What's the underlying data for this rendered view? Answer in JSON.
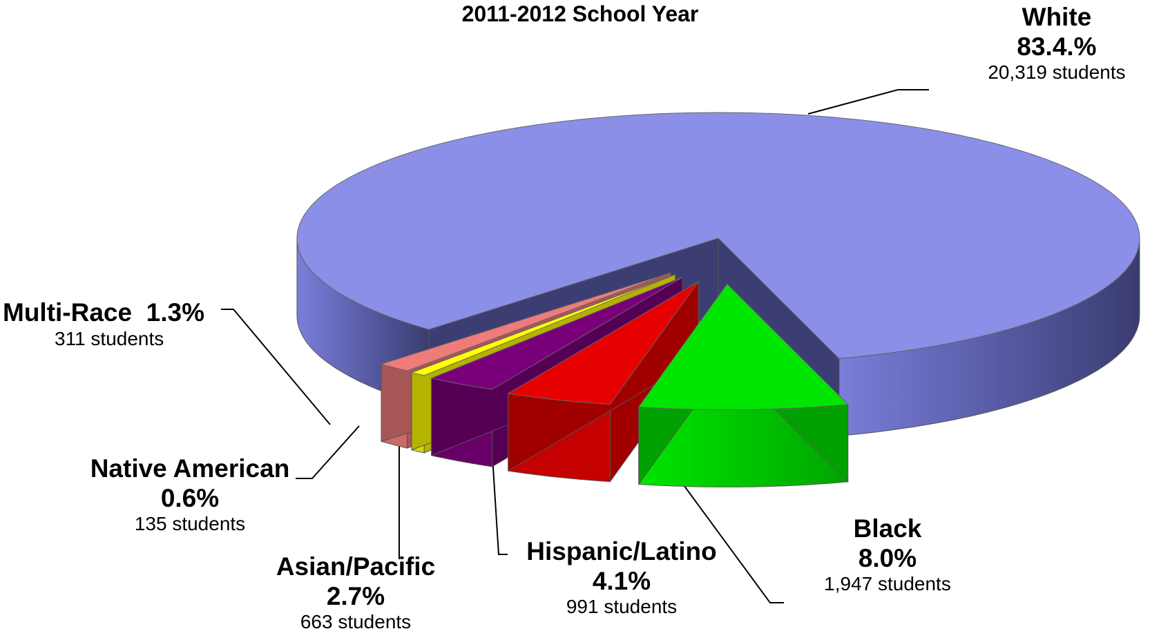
{
  "chart_data": {
    "type": "pie",
    "title": "2011-2012 School Year",
    "categories": [
      "White",
      "Black",
      "Hispanic/Latino",
      "Asian/Pacific",
      "Native American",
      "Multi-Race"
    ],
    "values": [
      83.4,
      8.0,
      4.1,
      2.7,
      0.6,
      1.3
    ],
    "percent_labels": [
      "83.4.%",
      "8.0%",
      "4.1%",
      "2.7%",
      "0.6%",
      "1.3%"
    ],
    "counts": [
      "20,319 students",
      "1,947 students",
      "991 students",
      "663 students",
      "135 students",
      "311 students"
    ],
    "colors": [
      "#8b8fe8",
      "#00e600",
      "#e60000",
      "#7a007a",
      "#ffff00",
      "#ef7b7b"
    ],
    "exploded": true,
    "style": "3d",
    "legend": "none"
  }
}
